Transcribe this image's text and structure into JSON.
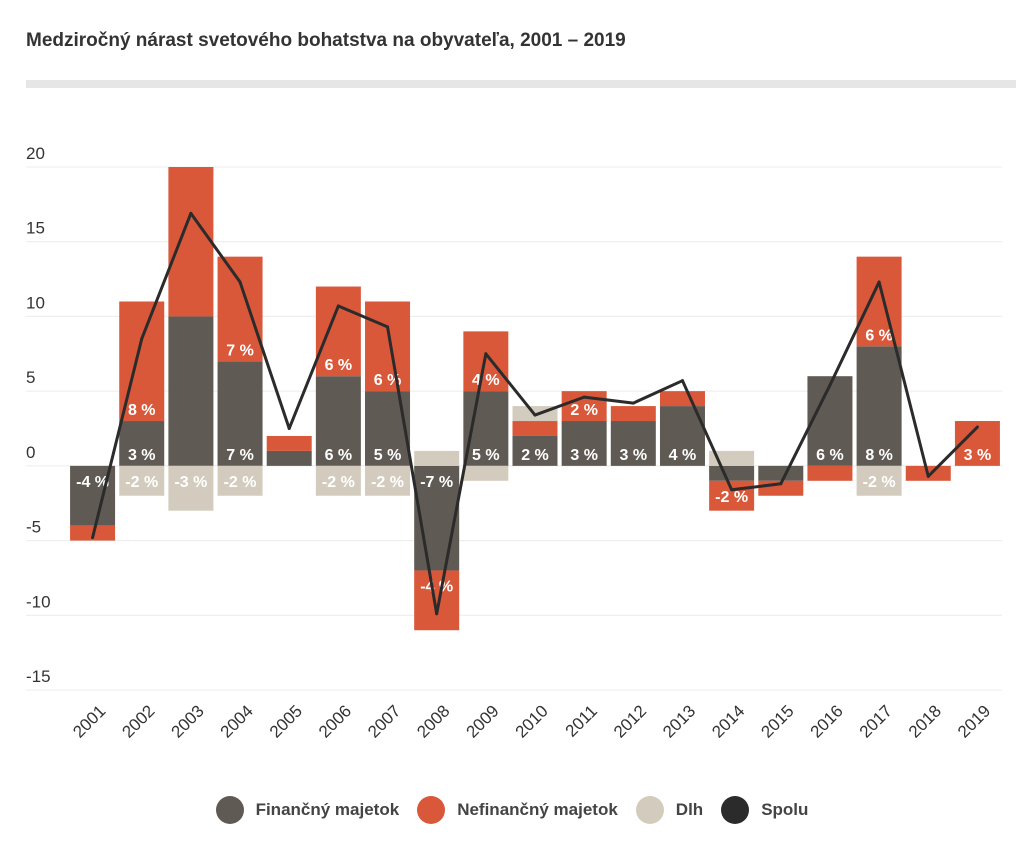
{
  "title": "Medziročný nárast svetového bohatstva na obyvateľa, 2001 – 2019",
  "legend": [
    {
      "name": "Finančný majetok",
      "color": "#5f5a53"
    },
    {
      "name": "Nefinančný majetok",
      "color": "#d9583a"
    },
    {
      "name": "Dlh",
      "color": "#d3ccbe"
    },
    {
      "name": "Spolu",
      "color": "#2b2b2b"
    }
  ],
  "chart_data": {
    "type": "bar",
    "stacked": true,
    "categories": [
      "2001",
      "2002",
      "2003",
      "2004",
      "2005",
      "2006",
      "2007",
      "2008",
      "2009",
      "2010",
      "2011",
      "2012",
      "2013",
      "2014",
      "2015",
      "2016",
      "2017",
      "2018",
      "2019"
    ],
    "ylim": [
      -15,
      20
    ],
    "yticks": [
      -15,
      -10,
      -5,
      0,
      5,
      10,
      15,
      20
    ],
    "ytick_labels": [
      "-15",
      "-10",
      "-5",
      "0",
      "5",
      "10",
      "15",
      "20"
    ],
    "grid": true,
    "legend_position": "bottom",
    "series": [
      {
        "name": "Finančný majetok",
        "color": "#5f5a53",
        "values": [
          -4,
          3,
          10,
          7,
          1,
          6,
          5,
          -7,
          5,
          2,
          3,
          3,
          4,
          -1,
          -1,
          6,
          8,
          0,
          0
        ],
        "labels": [
          "-4 %",
          "3 %",
          "",
          "7 %",
          "",
          "6 %",
          "5 %",
          "-7 %",
          "5 %",
          "2 %",
          "3 %",
          "3 %",
          "4 %",
          "",
          "",
          "6 %",
          "8 %",
          "",
          ""
        ]
      },
      {
        "name": "Nefinančný majetok",
        "color": "#d9583a",
        "values": [
          -1,
          8,
          10,
          7,
          1,
          6,
          6,
          -4,
          4,
          1,
          2,
          1,
          1,
          -2,
          -1,
          -1,
          6,
          -1,
          3
        ],
        "labels": [
          "",
          "8 %",
          "",
          "7 %",
          "",
          "6 %",
          "6 %",
          "-4 %",
          "4 %",
          "",
          "2 %",
          "",
          "",
          "-2 %",
          "",
          "",
          "6 %",
          "",
          "3 %"
        ]
      },
      {
        "name": "Dlh",
        "color": "#d3ccbe",
        "values": [
          0,
          -2,
          -3,
          -2,
          0,
          -2,
          -2,
          1,
          -1,
          1,
          0,
          0,
          0,
          1,
          0,
          0,
          -2,
          0,
          0
        ],
        "labels": [
          "",
          "-2 %",
          "-3 %",
          "-2 %",
          "",
          "-2 %",
          "-2 %",
          "",
          "",
          "",
          "",
          "",
          "",
          "",
          "",
          "",
          "-2 %",
          "",
          ""
        ]
      }
    ],
    "total": {
      "name": "Spolu",
      "color": "#2b2b2b",
      "values": [
        -4.8,
        8.5,
        16.9,
        12.3,
        2.5,
        10.7,
        9.3,
        -9.9,
        7.5,
        3.4,
        4.6,
        4.2,
        5.7,
        -1.6,
        -1.2,
        5.4,
        12.3,
        -0.7,
        2.6
      ]
    }
  }
}
